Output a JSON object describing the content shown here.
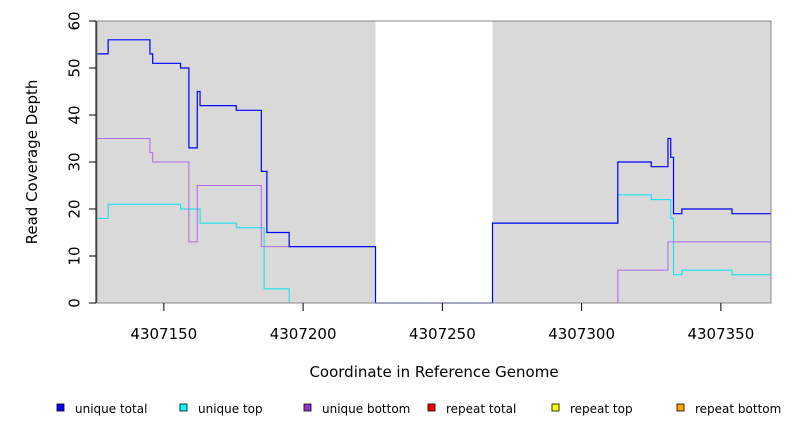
{
  "chart_data": {
    "type": "line",
    "title": "",
    "xlabel": "Coordinate in Reference Genome",
    "ylabel": "Read Coverage Depth",
    "xlim": [
      4307126,
      4307368
    ],
    "ylim": [
      0,
      60
    ],
    "x_ticks": [
      4307150,
      4307200,
      4307250,
      4307300,
      4307350
    ],
    "y_ticks": [
      0,
      10,
      20,
      30,
      40,
      50,
      60
    ],
    "background_shading": [
      {
        "from": 4307126,
        "to": 4307226,
        "color": "#d9d9d9"
      },
      {
        "from": 4307268,
        "to": 4307368,
        "color": "#d9d9d9"
      }
    ],
    "series": [
      {
        "name": "unique total",
        "color": "#0000ff",
        "points": [
          [
            4307126,
            53
          ],
          [
            4307130,
            53
          ],
          [
            4307130,
            56
          ],
          [
            4307145,
            56
          ],
          [
            4307145,
            53
          ],
          [
            4307146,
            53
          ],
          [
            4307146,
            51
          ],
          [
            4307156,
            51
          ],
          [
            4307156,
            50
          ],
          [
            4307159,
            50
          ],
          [
            4307159,
            33
          ],
          [
            4307162,
            33
          ],
          [
            4307162,
            45
          ],
          [
            4307163,
            45
          ],
          [
            4307163,
            42
          ],
          [
            4307176,
            42
          ],
          [
            4307176,
            41
          ],
          [
            4307185,
            41
          ],
          [
            4307185,
            28
          ],
          [
            4307187,
            28
          ],
          [
            4307187,
            15
          ],
          [
            4307195,
            15
          ],
          [
            4307195,
            12
          ],
          [
            4307226,
            12
          ],
          [
            4307226,
            0
          ],
          [
            4307268,
            0
          ],
          [
            4307268,
            17
          ],
          [
            4307313,
            17
          ],
          [
            4307313,
            30
          ],
          [
            4307325,
            30
          ],
          [
            4307325,
            29
          ],
          [
            4307331,
            29
          ],
          [
            4307331,
            35
          ],
          [
            4307332,
            35
          ],
          [
            4307332,
            31
          ],
          [
            4307333,
            31
          ],
          [
            4307333,
            19
          ],
          [
            4307336,
            19
          ],
          [
            4307336,
            20
          ],
          [
            4307354,
            20
          ],
          [
            4307354,
            19
          ],
          [
            4307368,
            19
          ]
        ]
      },
      {
        "name": "unique top",
        "color": "#00e5ee",
        "points": [
          [
            4307126,
            18
          ],
          [
            4307130,
            18
          ],
          [
            4307130,
            21
          ],
          [
            4307156,
            21
          ],
          [
            4307156,
            20
          ],
          [
            4307163,
            20
          ],
          [
            4307163,
            17
          ],
          [
            4307176,
            17
          ],
          [
            4307176,
            16
          ],
          [
            4307186,
            16
          ],
          [
            4307186,
            3
          ],
          [
            4307195,
            3
          ],
          [
            4307195,
            0
          ],
          [
            4307226,
            0
          ],
          [
            4307268,
            0
          ],
          [
            4307268,
            17
          ],
          [
            4307313,
            17
          ],
          [
            4307313,
            23
          ],
          [
            4307325,
            23
          ],
          [
            4307325,
            22
          ],
          [
            4307332,
            22
          ],
          [
            4307332,
            18
          ],
          [
            4307333,
            18
          ],
          [
            4307333,
            6
          ],
          [
            4307336,
            6
          ],
          [
            4307336,
            7
          ],
          [
            4307354,
            7
          ],
          [
            4307354,
            6
          ],
          [
            4307368,
            6
          ]
        ]
      },
      {
        "name": "unique bottom",
        "color": "#b266e6",
        "points": [
          [
            4307126,
            35
          ],
          [
            4307145,
            35
          ],
          [
            4307145,
            32
          ],
          [
            4307146,
            32
          ],
          [
            4307146,
            30
          ],
          [
            4307159,
            30
          ],
          [
            4307159,
            13
          ],
          [
            4307162,
            13
          ],
          [
            4307162,
            25
          ],
          [
            4307185,
            25
          ],
          [
            4307185,
            12
          ],
          [
            4307226,
            12
          ],
          [
            4307226,
            0
          ],
          [
            4307313,
            0
          ],
          [
            4307313,
            7
          ],
          [
            4307331,
            7
          ],
          [
            4307331,
            13
          ],
          [
            4307368,
            13
          ]
        ]
      },
      {
        "name": "repeat total",
        "color": "#ff0000",
        "points": [
          [
            4307126,
            0
          ],
          [
            4307368,
            0
          ]
        ]
      },
      {
        "name": "repeat top",
        "color": "#ffff00",
        "points": [
          [
            4307126,
            0
          ],
          [
            4307368,
            0
          ]
        ]
      },
      {
        "name": "repeat bottom",
        "color": "#ffa500",
        "points": [
          [
            4307126,
            0
          ],
          [
            4307368,
            0
          ]
        ]
      }
    ],
    "legend": {
      "placement": "bottom",
      "entries": [
        {
          "label": "unique total",
          "color": "#0000ff"
        },
        {
          "label": "unique top",
          "color": "#00ffff"
        },
        {
          "label": "unique bottom",
          "color": "#9932cc"
        },
        {
          "label": "repeat total",
          "color": "#ff0000"
        },
        {
          "label": "repeat top",
          "color": "#ffff00"
        },
        {
          "label": "repeat bottom",
          "color": "#ffa500"
        }
      ]
    }
  }
}
